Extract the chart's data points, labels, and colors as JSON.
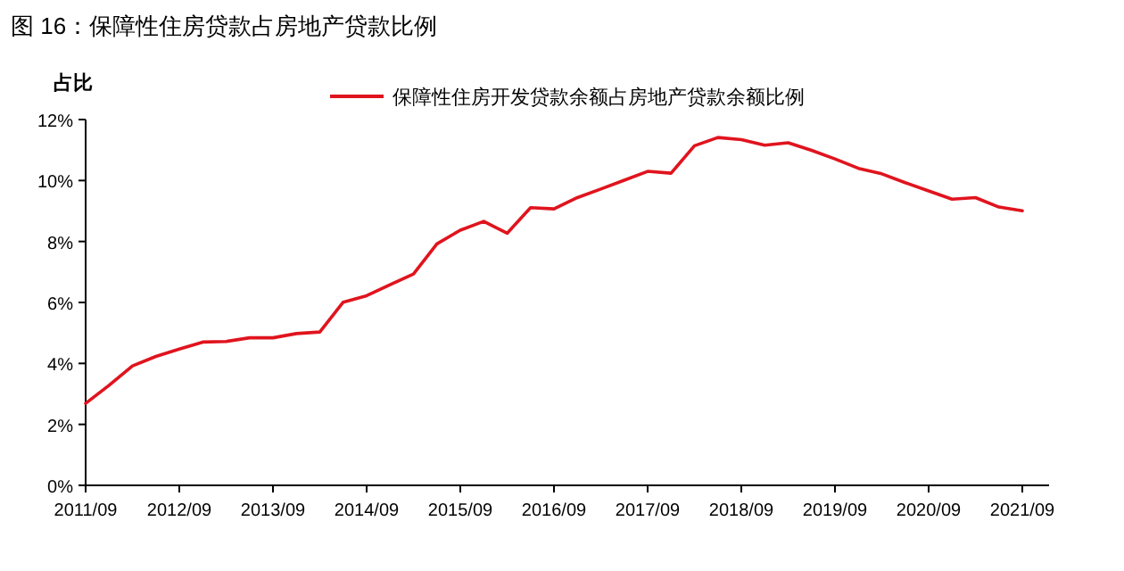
{
  "chart_data": {
    "type": "line",
    "title": "图 16：保障性住房贷款占房地产贷款比例",
    "ylabel": "占比",
    "categories": [
      "2011/09",
      null,
      null,
      null,
      "2012/09",
      null,
      null,
      null,
      "2013/09",
      null,
      null,
      null,
      "2014/09",
      null,
      null,
      null,
      "2015/09",
      null,
      null,
      null,
      "2016/09",
      null,
      null,
      null,
      "2017/09",
      null,
      null,
      null,
      "2018/09",
      null,
      null,
      null,
      "2019/09",
      null,
      null,
      null,
      "2020/09",
      null,
      null,
      null,
      "2021/09"
    ],
    "series": [
      {
        "name": "保障性住房开发贷款余额占房地产贷款余额比例",
        "color": "#e0141e",
        "values": [
          2.69,
          3.28,
          3.92,
          4.23,
          4.47,
          4.7,
          4.72,
          4.84,
          4.84,
          4.98,
          5.03,
          6.01,
          6.22,
          6.58,
          6.93,
          7.92,
          8.37,
          8.66,
          8.27,
          9.11,
          9.07,
          9.44,
          9.72,
          10.01,
          10.3,
          10.24,
          11.14,
          11.41,
          11.34,
          11.16,
          11.24,
          10.99,
          10.71,
          10.4,
          10.22,
          9.93,
          9.66,
          9.39,
          9.44,
          9.13,
          9.01
        ]
      }
    ],
    "ylim": [
      0,
      12
    ],
    "yticks": [
      {
        "value": 0,
        "label": "0%"
      },
      {
        "value": 2,
        "label": "2%"
      },
      {
        "value": 4,
        "label": "4%"
      },
      {
        "value": 6,
        "label": "6%"
      },
      {
        "value": 8,
        "label": "8%"
      },
      {
        "value": 10,
        "label": "10%"
      },
      {
        "value": 12,
        "label": "12%"
      }
    ],
    "grid": false,
    "legend": "top",
    "marker": "none",
    "line_style": "solid"
  }
}
